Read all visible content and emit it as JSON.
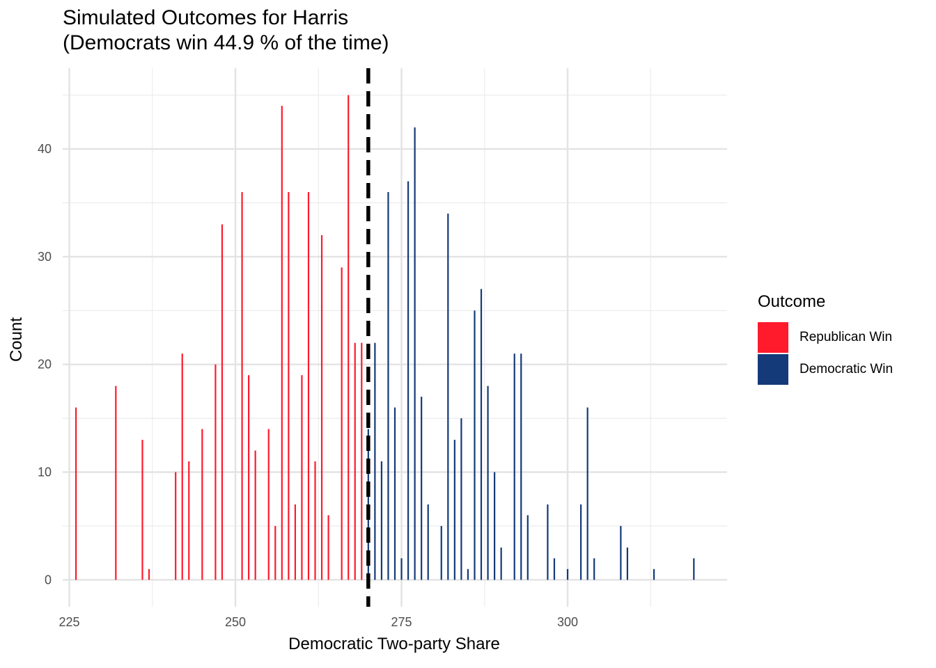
{
  "chart_data": {
    "type": "bar",
    "title": "Simulated Outcomes for Harris",
    "subtitle": "(Democrats win 44.9 % of the time)",
    "xlabel": "Democratic Two-party Share",
    "ylabel": "Count",
    "xlim": [
      224,
      324
    ],
    "ylim": [
      -2.5,
      47.5
    ],
    "x_ticks": [
      225,
      250,
      275,
      300
    ],
    "y_ticks": [
      0,
      10,
      20,
      30,
      40
    ],
    "threshold_line": {
      "x": 270,
      "style": "dashed",
      "color": "#000000"
    },
    "grid": true,
    "legend": {
      "title": "Outcome",
      "placement": "right",
      "entries": [
        {
          "label": "Republican Win",
          "color": "#ff1a2c"
        },
        {
          "label": "Democratic Win",
          "color": "#143a79"
        }
      ]
    },
    "series": [
      {
        "name": "Republican Win",
        "color": "#ff1a2c",
        "points": [
          [
            226,
            16
          ],
          [
            232,
            18
          ],
          [
            236,
            13
          ],
          [
            237,
            1
          ],
          [
            241,
            10
          ],
          [
            242,
            21
          ],
          [
            243,
            11
          ],
          [
            245,
            14
          ],
          [
            247,
            20
          ],
          [
            248,
            33
          ],
          [
            251,
            36
          ],
          [
            252,
            19
          ],
          [
            253,
            12
          ],
          [
            255,
            14
          ],
          [
            256,
            5
          ],
          [
            257,
            44
          ],
          [
            258,
            36
          ],
          [
            259,
            7
          ],
          [
            260,
            19
          ],
          [
            261,
            36
          ],
          [
            262,
            11
          ],
          [
            263,
            32
          ],
          [
            264,
            6
          ],
          [
            266,
            29
          ],
          [
            267,
            45
          ],
          [
            268,
            22
          ],
          [
            269,
            22
          ]
        ]
      },
      {
        "name": "Democratic Win",
        "color": "#143a79",
        "points": [
          [
            270,
            14
          ],
          [
            271,
            22
          ],
          [
            272,
            11
          ],
          [
            273,
            36
          ],
          [
            274,
            16
          ],
          [
            275,
            2
          ],
          [
            276,
            37
          ],
          [
            277,
            42
          ],
          [
            278,
            17
          ],
          [
            279,
            7
          ],
          [
            281,
            5
          ],
          [
            282,
            34
          ],
          [
            283,
            13
          ],
          [
            284,
            15
          ],
          [
            285,
            1
          ],
          [
            286,
            25
          ],
          [
            287,
            27
          ],
          [
            288,
            18
          ],
          [
            289,
            10
          ],
          [
            290,
            3
          ],
          [
            292,
            21
          ],
          [
            293,
            21
          ],
          [
            294,
            6
          ],
          [
            297,
            7
          ],
          [
            298,
            2
          ],
          [
            300,
            1
          ],
          [
            302,
            7
          ],
          [
            303,
            16
          ],
          [
            304,
            2
          ],
          [
            308,
            5
          ],
          [
            309,
            3
          ],
          [
            313,
            1
          ],
          [
            319,
            2
          ]
        ]
      }
    ]
  }
}
